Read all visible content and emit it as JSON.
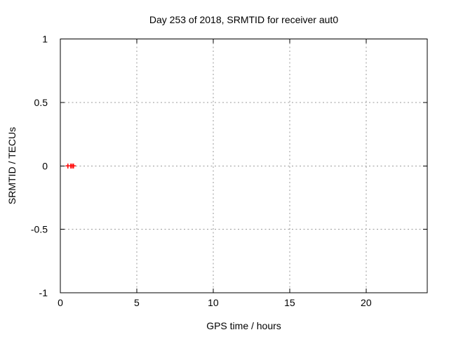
{
  "chart_data": {
    "type": "scatter",
    "title": "Day 253 of 2018, SRMTID for receiver aut0",
    "xlabel": "GPS time / hours",
    "ylabel": "SRMTID / TECUs",
    "xlim": [
      0,
      24
    ],
    "ylim": [
      -1,
      1
    ],
    "grid": true,
    "legend": "none",
    "xticks": [
      {
        "v": 0,
        "label": "0"
      },
      {
        "v": 5,
        "label": "5"
      },
      {
        "v": 10,
        "label": "10"
      },
      {
        "v": 15,
        "label": "15"
      },
      {
        "v": 20,
        "label": "20"
      }
    ],
    "yticks": [
      {
        "v": 1,
        "label": "1"
      },
      {
        "v": 0.5,
        "label": "0.5"
      },
      {
        "v": 0,
        "label": "0"
      },
      {
        "v": -0.5,
        "label": "-0.5"
      },
      {
        "v": -1,
        "label": "-1"
      }
    ],
    "colors": {
      "background": "#ffffff",
      "axis": "#000000",
      "text": "#000000",
      "grid": "#9a9a9a",
      "marker": "#ff0000"
    },
    "series": [
      {
        "name": "SRMTID",
        "marker": "plus",
        "color": "#ff0000",
        "points": [
          {
            "x": 0.5,
            "y": 0
          },
          {
            "x": 0.68,
            "y": 0
          },
          {
            "x": 0.77,
            "y": 0
          },
          {
            "x": 0.86,
            "y": 0
          }
        ]
      }
    ]
  }
}
